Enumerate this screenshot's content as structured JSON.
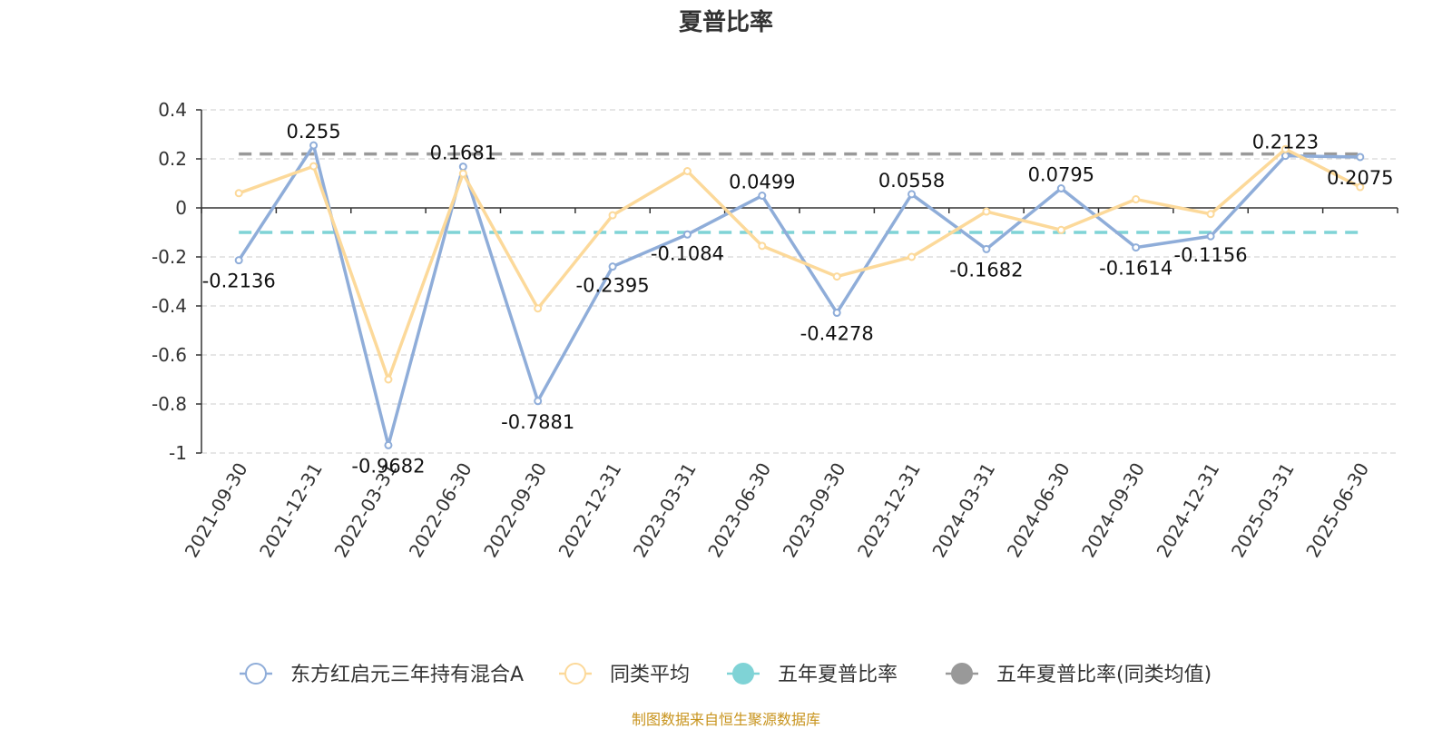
{
  "page": {
    "title": "夏普比率",
    "source": "制图数据来自恒生聚源数据库"
  },
  "chart_data": {
    "type": "line",
    "title": "夏普比率",
    "categories": [
      "2021-09-30",
      "2021-12-31",
      "2022-03-31",
      "2022-06-30",
      "2022-09-30",
      "2022-12-31",
      "2023-03-31",
      "2023-06-30",
      "2023-09-30",
      "2023-12-31",
      "2024-03-31",
      "2024-06-30",
      "2024-09-30",
      "2024-12-31",
      "2025-03-31",
      "2025-06-30"
    ],
    "ylim": [
      -1,
      0.4
    ],
    "yticks": [
      0.4,
      0.2,
      0,
      -0.2,
      -0.4,
      -0.6,
      -0.8,
      -1
    ],
    "ytick_labels": [
      "0.4",
      "0.2",
      "0",
      "-0.2",
      "-0.4",
      "-0.6",
      "-0.8",
      "-1"
    ],
    "grid": true,
    "legend_position": "bottom",
    "series": [
      {
        "name": "东方红启元三年持有混合A",
        "color": "#8fadd9",
        "values": [
          -0.2136,
          0.255,
          -0.9682,
          0.1681,
          -0.7881,
          -0.2395,
          -0.1084,
          0.0499,
          -0.4278,
          0.0558,
          -0.1682,
          0.0795,
          -0.1614,
          -0.1156,
          0.2123,
          0.2075
        ],
        "labels": [
          "-0.2136",
          "0.255",
          "-0.9682",
          "0.1681",
          "-0.7881",
          "-0.2395",
          "-0.1084",
          "0.0499",
          "-0.4278",
          "0.0558",
          "-0.1682",
          "0.0795",
          "-0.1614",
          "-0.1156",
          "0.2123",
          "0.2075"
        ]
      },
      {
        "name": "同类平均",
        "color": "#fcd99a",
        "values": [
          0.06,
          0.17,
          -0.7,
          0.14,
          -0.41,
          -0.03,
          0.15,
          -0.155,
          -0.28,
          -0.2,
          -0.015,
          -0.09,
          0.035,
          -0.025,
          0.24,
          0.085
        ]
      },
      {
        "name": "五年夏普比率",
        "color": "#7fd3d6",
        "constant": -0.1
      },
      {
        "name": "五年夏普比率(同类均值)",
        "color": "#999999",
        "constant": 0.22
      }
    ]
  }
}
